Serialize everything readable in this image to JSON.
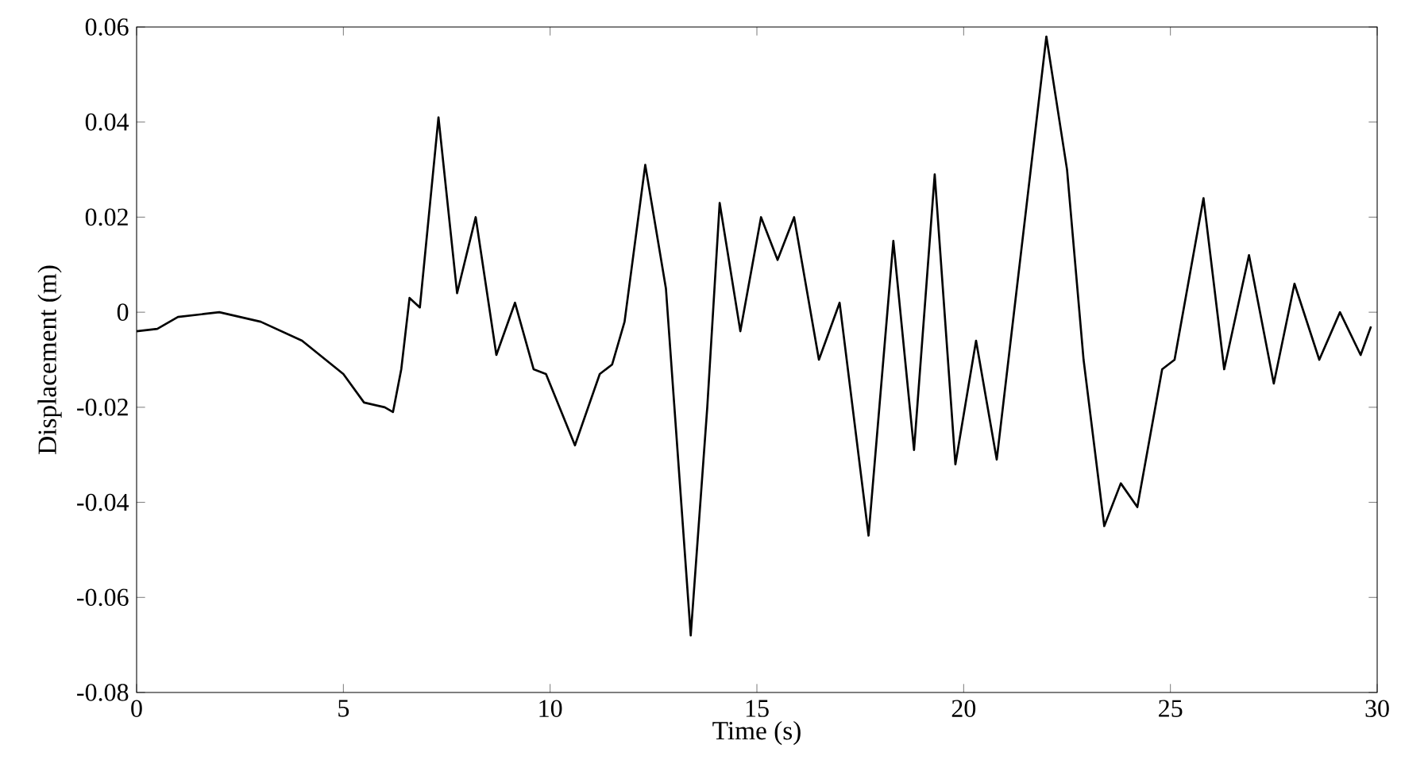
{
  "chart_data": {
    "type": "line",
    "xlabel": "Time (s)",
    "ylabel": "Displacement (m)",
    "color": "#000000",
    "x": [
      0,
      0.5,
      1,
      2,
      3,
      4,
      5,
      5.5,
      6,
      6.2,
      6.4,
      6.6,
      6.85,
      7.3,
      7.75,
      8.2,
      8.7,
      9.15,
      9.6,
      9.9,
      10.6,
      11.2,
      11.5,
      11.8,
      12.3,
      12.8,
      13.4,
      13.8,
      14.1,
      14.6,
      15.1,
      15.5,
      15.9,
      16.5,
      17.0,
      17.7,
      18.3,
      18.8,
      19.3,
      19.8,
      20.3,
      20.8,
      22.0,
      22.5,
      22.9,
      23.4,
      23.8,
      24.2,
      24.8,
      25.1,
      25.8,
      26.3,
      26.9,
      27.5,
      28.0,
      28.6,
      29.1,
      29.6,
      29.85
    ],
    "values": [
      -0.004,
      -0.0035,
      -0.001,
      0.0,
      -0.002,
      -0.006,
      -0.013,
      -0.019,
      -0.02,
      -0.021,
      -0.012,
      0.003,
      0.001,
      0.041,
      0.004,
      0.02,
      -0.009,
      0.002,
      -0.012,
      -0.013,
      -0.028,
      -0.013,
      -0.011,
      -0.002,
      0.031,
      0.005,
      -0.068,
      -0.02,
      0.023,
      -0.004,
      0.02,
      0.011,
      0.02,
      -0.01,
      0.002,
      -0.047,
      0.015,
      -0.029,
      0.029,
      -0.032,
      -0.006,
      -0.031,
      0.058,
      0.03,
      -0.01,
      -0.045,
      -0.036,
      -0.041,
      -0.012,
      -0.01,
      0.024,
      -0.012,
      0.012,
      -0.015,
      0.006,
      -0.01,
      0.0,
      -0.009,
      -0.003
    ],
    "xlim": [
      0,
      30
    ],
    "ylim": [
      -0.08,
      0.06
    ],
    "xticks": [
      0,
      5,
      10,
      15,
      20,
      25,
      30
    ],
    "yticks": [
      -0.08,
      -0.06,
      -0.04,
      -0.02,
      0,
      0.02,
      0.04,
      0.06
    ]
  }
}
